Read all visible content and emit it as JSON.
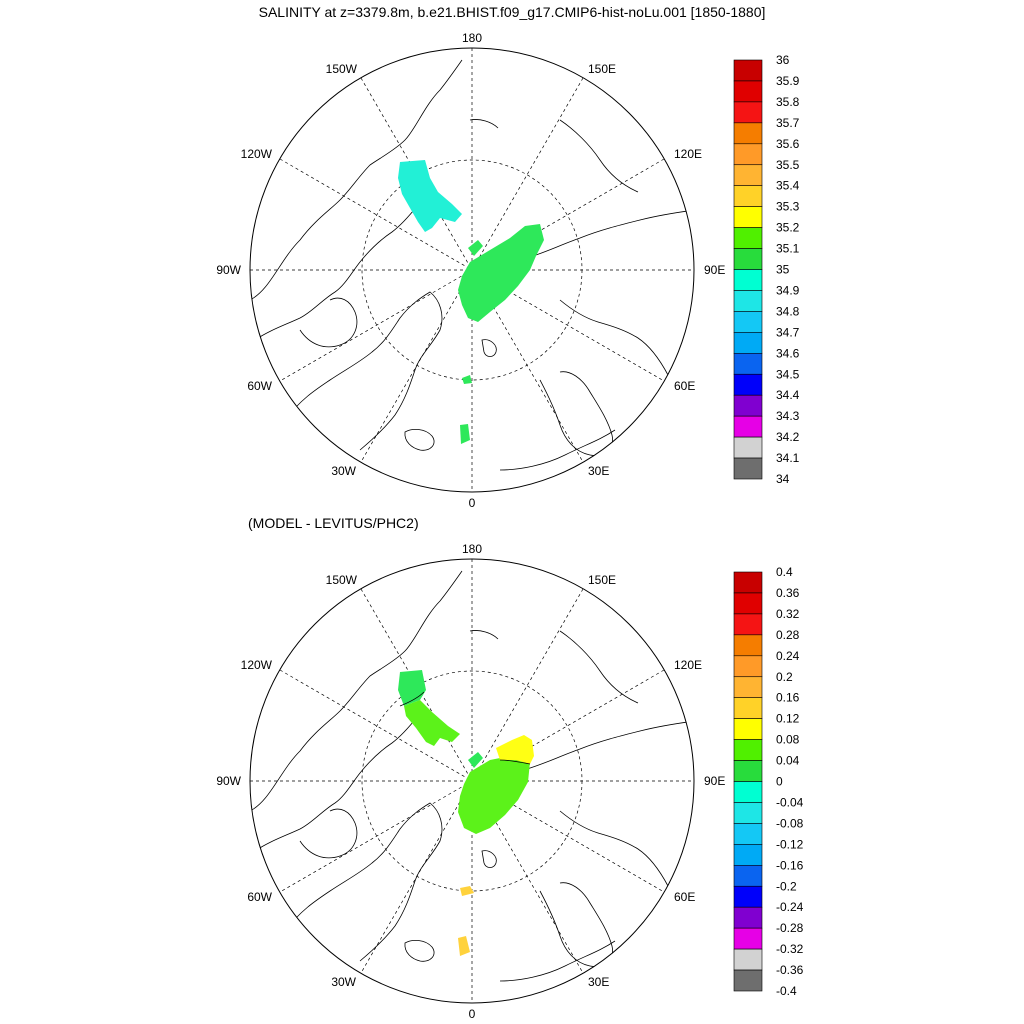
{
  "title": "SALINITY at z=3379.8m, b.e21.BHIST.f09_g17.CMIP6-hist-noLu.001 [1850-1880]",
  "subtitle": "(MODEL - LEVITUS/PHC2)",
  "longitude_labels": {
    "top": "180",
    "bottom": "0",
    "left": "90W",
    "right": "90E",
    "upper_left": "150W",
    "upper_right": "150E",
    "left_upper": "120W",
    "right_upper": "120E",
    "left_lower": "60W",
    "right_lower": "60E",
    "lower_left": "30W",
    "lower_right": "30E"
  },
  "colorbar_top": {
    "labels": [
      "36",
      "35.9",
      "35.8",
      "35.7",
      "35.6",
      "35.5",
      "35.4",
      "35.3",
      "35.2",
      "35.1",
      "35",
      "34.9",
      "34.8",
      "34.7",
      "34.6",
      "34.5",
      "34.4",
      "34.3",
      "34.2",
      "34.1",
      "34"
    ],
    "colors": [
      "#c80000",
      "#e00000",
      "#f51414",
      "#f57d00",
      "#ff9a28",
      "#ffb432",
      "#ffd228",
      "#ffff00",
      "#50f000",
      "#28dc3c",
      "#00ffd2",
      "#1ee6e6",
      "#14c8f5",
      "#00aaf5",
      "#0a64f0",
      "#0000fa",
      "#8000d0",
      "#e600e6",
      "#d2d2d2",
      "#6e6e6e"
    ]
  },
  "colorbar_bottom": {
    "labels": [
      "0.4",
      "0.36",
      "0.32",
      "0.28",
      "0.24",
      "0.2",
      "0.16",
      "0.12",
      "0.08",
      "0.04",
      "0",
      "-0.04",
      "-0.08",
      "-0.12",
      "-0.16",
      "-0.2",
      "-0.24",
      "-0.28",
      "-0.32",
      "-0.36",
      "-0.4"
    ],
    "colors": [
      "#c80000",
      "#e00000",
      "#f51414",
      "#f57d00",
      "#ff9a28",
      "#ffb432",
      "#ffd228",
      "#ffff00",
      "#50f000",
      "#28dc3c",
      "#00ffd2",
      "#1ee6e6",
      "#14c8f5",
      "#00aaf5",
      "#0a64f0",
      "#0000fa",
      "#8000d0",
      "#e600e6",
      "#d2d2d2",
      "#6e6e6e"
    ]
  },
  "field_colors": {
    "top_cyan": "#22f0d6",
    "top_green": "#2ee85a",
    "bottom_green_dark": "#2ee85a",
    "bottom_green_light": "#5cf21a",
    "bottom_yellow": "#ffff14",
    "bottom_gold": "#ffd23c"
  }
}
